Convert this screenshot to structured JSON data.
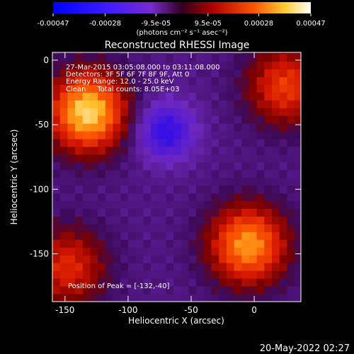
{
  "chart_data": {
    "type": "heatmap",
    "title": "Reconstructed RHESSI Image",
    "xlabel": "Heliocentric X (arcsec)",
    "ylabel": "Heliocentric Y (arcsec)",
    "xlim": [
      -160,
      37
    ],
    "ylim": [
      -187,
      6
    ],
    "x_ticks": [
      -150,
      -100,
      -50,
      0
    ],
    "y_ticks": [
      0,
      -50,
      -100,
      -150
    ],
    "colorbar": {
      "min": -0.00047,
      "max": 0.00047,
      "tick_values": [
        -0.00047,
        -0.00028,
        -9.5e-05,
        9.5e-05,
        0.00028,
        0.00047
      ],
      "tick_labels": [
        "-0.00047",
        "-0.00028",
        "-9.5e-05",
        "9.5e-05",
        "0.00028",
        "0.00047"
      ],
      "label": "(photons cm⁻² s⁻¹ asec⁻²)"
    },
    "annotations": [
      "27-Mar-2015 03:05:08.000 to 03:11:08.000",
      "Detectors: 3F 5F 6F 7F 8F 9F, Att 0",
      "Energy Range: 12.0 - 25.0 keV",
      "Clean     Total counts: 8.05E+03"
    ],
    "peak_label": "Position of Peak = [-132,-40]",
    "peak": [
      -132,
      -40
    ],
    "sources": [
      {
        "x": -132,
        "y": -40,
        "value": 0.00047
      },
      {
        "x": -5,
        "y": -143,
        "value": 0.0004
      },
      {
        "x": 25,
        "y": -20,
        "value": 0.00028
      },
      {
        "x": -148,
        "y": -160,
        "value": 0.00025
      }
    ],
    "minimum": {
      "x": -70,
      "y": -55,
      "value": -0.00028
    }
  },
  "footer": {
    "timestamp": "20-May-2022 02:27"
  }
}
